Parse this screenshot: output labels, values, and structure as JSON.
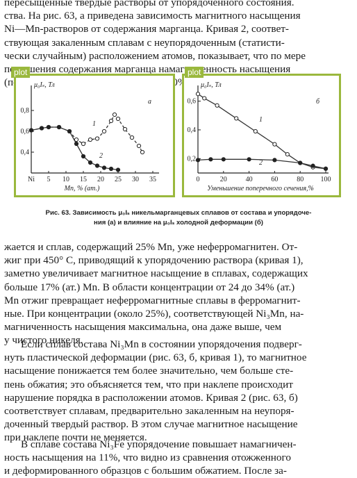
{
  "text_top": [
    "пересыщенные твердые растворы от упорядоченного состояния.",
    "ства. На рис. 63, а приведена зависимость магнитного насыщения",
    "Ni—Mn-растворов от содержания марганца. Кривая 2, соответ-",
    "ствующая закаленным сплавам с неупорядоченным (статисти-",
    "чески случайным) расположением атомов, показывает, что по мере",
    "повышения содержания марганца намагниченность насыщения",
    "(после незначительного подъема до 10% Mn) непрерывно пони-"
  ],
  "plot_tag_a": "plot",
  "plot_tag_b": "plot",
  "chart_data": [
    {
      "type": "line",
      "panel": "a",
      "ylabel": "μ₀Iₛ, Тл",
      "xlabel": "Mn, % (ат.)",
      "x_first_label": "Ni",
      "xticks": [
        "Ni",
        "5",
        "10",
        "15",
        "20",
        "25",
        "30",
        "35"
      ],
      "yticks": [
        "0,4",
        "0,6",
        "0,8"
      ],
      "xlim": [
        0,
        36
      ],
      "ylim": [
        0.2,
        1.0
      ],
      "series": [
        {
          "name": "1",
          "style": "dashed",
          "points": [
            [
              0,
              0.61
            ],
            [
              3,
              0.63
            ],
            [
              5,
              0.64
            ],
            [
              8,
              0.64
            ],
            [
              11,
              0.6
            ],
            [
              13,
              0.52
            ],
            [
              15,
              0.48
            ],
            [
              17,
              0.52
            ],
            [
              19,
              0.53
            ],
            [
              21,
              0.6
            ],
            [
              23,
              0.7
            ],
            [
              24,
              0.76
            ],
            [
              25,
              0.72
            ],
            [
              27,
              0.62
            ],
            [
              29,
              0.54
            ],
            [
              31,
              0.46
            ],
            [
              32,
              0.4
            ]
          ]
        },
        {
          "name": "2",
          "style": "solid",
          "points": [
            [
              0,
              0.61
            ],
            [
              3,
              0.63
            ],
            [
              5,
              0.64
            ],
            [
              8,
              0.64
            ],
            [
              11,
              0.6
            ],
            [
              13,
              0.48
            ],
            [
              15,
              0.36
            ],
            [
              17,
              0.3
            ],
            [
              19,
              0.27
            ],
            [
              21,
              0.25
            ],
            [
              23,
              0.24
            ],
            [
              25,
              0.23
            ]
          ]
        }
      ],
      "curve_labels": [
        "1",
        "2"
      ],
      "panel_label": "а"
    },
    {
      "type": "line",
      "panel": "b",
      "ylabel": "μ₀Iₛ, Тл",
      "xlabel": "Уменьшение поперечного сечения,%",
      "xticks": [
        "0",
        "20",
        "40",
        "60",
        "80",
        "100"
      ],
      "yticks": [
        "0,2",
        "0,4",
        "0,6"
      ],
      "xlim": [
        0,
        100
      ],
      "ylim": [
        0.1,
        0.68
      ],
      "series": [
        {
          "name": "1",
          "style": "solid",
          "points": [
            [
              0,
              0.65
            ],
            [
              5,
              0.62
            ],
            [
              15,
              0.57
            ],
            [
              30,
              0.48
            ],
            [
              45,
              0.39
            ],
            [
              60,
              0.3
            ],
            [
              70,
              0.23
            ],
            [
              80,
              0.17
            ],
            [
              90,
              0.14
            ],
            [
              100,
              0.13
            ]
          ]
        },
        {
          "name": "2",
          "style": "solid",
          "points": [
            [
              0,
              0.19
            ],
            [
              10,
              0.195
            ],
            [
              20,
              0.195
            ],
            [
              40,
              0.195
            ],
            [
              60,
              0.19
            ],
            [
              80,
              0.17
            ],
            [
              90,
              0.15
            ],
            [
              100,
              0.13
            ]
          ]
        }
      ],
      "curve_labels": [
        "1",
        "2"
      ],
      "panel_label": "б"
    }
  ],
  "caption": [
    "Рис. 63. Зависимость μ₀Iₛ никельмарганцевых сплавов от состава и упорядоче-",
    "ния (а) и влияние на μ₀Iₛ холодной деформации (б)"
  ],
  "text_mid": [
    "жается и сплав, содержащий 25% Mn, уже неферромагнитен. От-",
    "жиг при 450° С, приводящий к упорядочению раствора (кривая 1),",
    "заметно увеличивает магнитное насыщение в сплавах, содержащих",
    "больше 17% (ат.) Mn. В области концентрации от 24 до 34% (ат.)",
    "Mn отжиг превращает неферромагнитные сплавы в ферромагнит-",
    "ные. При концентрации (около 25%), соответствующей Ni₃Mn, на-",
    "магниченность насыщения максимальна, она даже выше, чем",
    "у чистого никеля."
  ],
  "text_low": [
    "Если сплав состава Ni₃Mn в состоянии упорядочения подверг-",
    "нуть пластической деформации (рис. 63, б, кривая 1), то магнитное",
    "насыщение понижается тем более значительно, чем больше сте-",
    "пень обжатия; это объясняется тем, что при наклепе происходит",
    "нарушение порядка в расположении атомов. Кривая 2 (рис. 63, б)",
    "соответствует сплавам, предварительно закаленным на неупоря-",
    "доченный твердый раствор. В этом случае магнитное насыщение",
    "при наклепе почти не меняется."
  ],
  "text_bot": [
    "В сплаве состава Ni₃Fe упорядочение повышает намагничен-",
    "ность насыщения на 11%, что видно из сравнения отожженного",
    "и деформированного образцов с большим обжатием. После за-"
  ]
}
